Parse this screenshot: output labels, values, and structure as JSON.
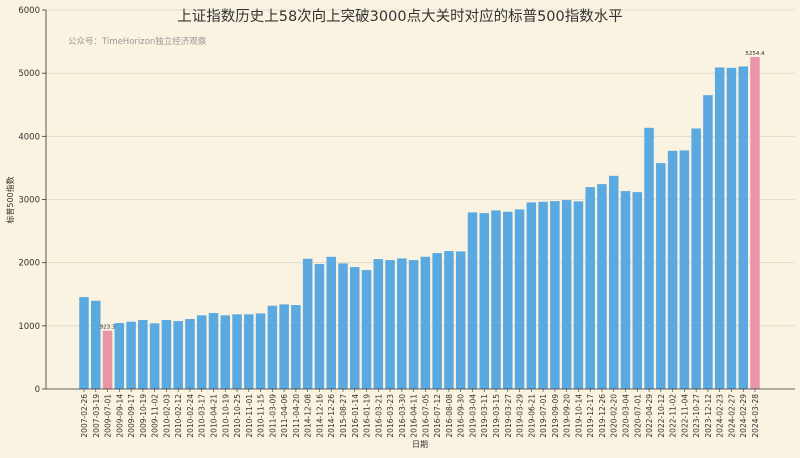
{
  "chart_data": {
    "type": "bar",
    "title": "上证指数历史上58次向上突破3000点大关时对应的标普500指数水平",
    "subtitle": "公众号：TimeHorizon独立经济观察",
    "xlabel": "日期",
    "ylabel": "标普500指数",
    "ylim": [
      0,
      6000
    ],
    "yticks": [
      0,
      1000,
      2000,
      3000,
      4000,
      5000,
      6000
    ],
    "grid": true,
    "colors": {
      "bar": "#5aa9e0",
      "highlight": "#e995a8",
      "background": "#faf3e1"
    },
    "categories": [
      "2007-02-26",
      "2007-03-19",
      "2009-07-01",
      "2009-09-14",
      "2009-09-17",
      "2009-10-19",
      "2009-11-02",
      "2010-02-03",
      "2010-02-12",
      "2010-02-24",
      "2010-03-17",
      "2010-04-21",
      "2010-10-19",
      "2010-10-25",
      "2010-11-01",
      "2010-11-15",
      "2011-03-09",
      "2011-04-06",
      "2011-04-20",
      "2014-12-08",
      "2014-12-16",
      "2014-12-26",
      "2015-08-27",
      "2016-01-14",
      "2016-01-19",
      "2016-03-21",
      "2016-03-23",
      "2016-03-30",
      "2016-04-11",
      "2016-07-05",
      "2016-07-12",
      "2016-08-08",
      "2016-09-30",
      "2019-03-04",
      "2019-03-11",
      "2019-03-15",
      "2019-03-27",
      "2019-03-29",
      "2019-06-21",
      "2019-07-01",
      "2019-09-09",
      "2019-09-20",
      "2019-10-14",
      "2019-12-17",
      "2019-12-26",
      "2020-02-20",
      "2020-03-04",
      "2020-07-01",
      "2022-04-29",
      "2022-10-12",
      "2022-11-02",
      "2022-11-04",
      "2023-10-27",
      "2023-12-12",
      "2024-02-23",
      "2024-02-27",
      "2024-02-29",
      "2024-03-28"
    ],
    "values": [
      1455,
      1397,
      923.3,
      1044,
      1065,
      1092,
      1039,
      1092,
      1076,
      1108,
      1166,
      1203,
      1166,
      1182,
      1182,
      1197,
      1318,
      1340,
      1329,
      2062,
      1978,
      2093,
      1988,
      1930,
      1883,
      2057,
      2041,
      2067,
      2041,
      2093,
      2152,
      2184,
      2178,
      2796,
      2785,
      2827,
      2806,
      2843,
      2954,
      2964,
      2975,
      2991,
      2970,
      3196,
      3244,
      3375,
      3133,
      3117,
      4135,
      3576,
      3771,
      3777,
      4125,
      4652,
      5090,
      5084,
      5106,
      5254.4
    ],
    "highlighted": [
      {
        "index": 2,
        "label": "923.3"
      },
      {
        "index": 57,
        "label": "5254.4"
      }
    ]
  }
}
